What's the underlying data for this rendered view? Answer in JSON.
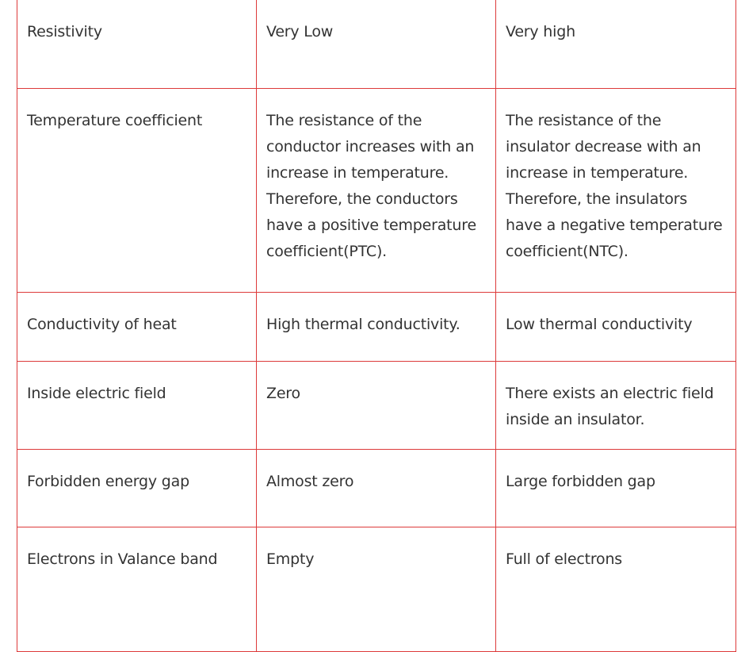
{
  "table": {
    "rows": [
      {
        "property": "Resistivity",
        "conductor": "Very Low",
        "insulator": "Very high"
      },
      {
        "property": "Temperature coefficient",
        "conductor": "The resistance of the conductor increases with an increase in temperature. Therefore, the conductors have a positive temperature coefficient(PTC).",
        "insulator": "The resistance of the insulator decrease with an increase in temperature. Therefore, the insulators have a negative temperature coefficient(NTC)."
      },
      {
        "property": "Conductivity of heat",
        "conductor": "High thermal conductivity.",
        "insulator": "Low thermal conductivity"
      },
      {
        "property": "Inside electric field",
        "conductor": "Zero",
        "insulator": "There exists an electric field inside an insulator."
      },
      {
        "property": "Forbidden energy gap",
        "conductor": "Almost zero",
        "insulator": "Large forbidden gap"
      },
      {
        "property": "Electrons in Valance band",
        "conductor": "Empty",
        "insulator": "Full of electrons"
      }
    ]
  },
  "colors": {
    "border": "#dd3a3a",
    "text": "#333333"
  }
}
